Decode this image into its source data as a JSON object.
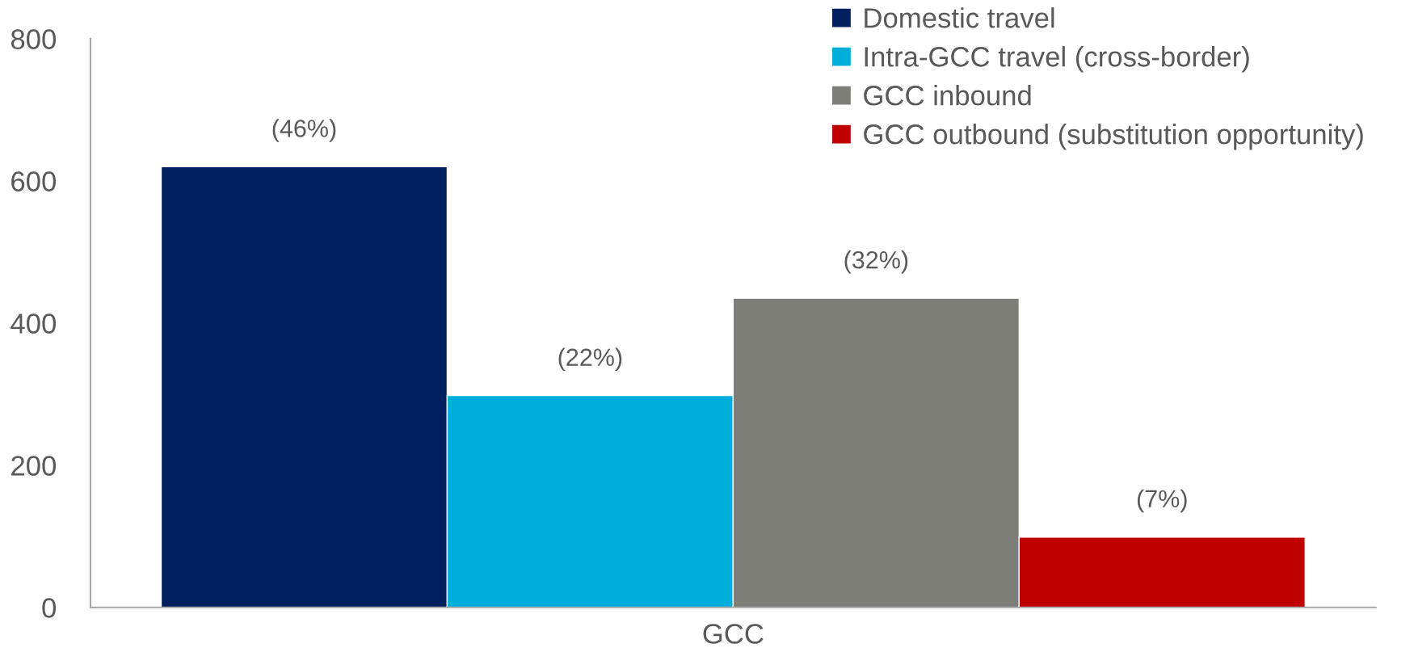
{
  "chart_data": {
    "type": "bar",
    "categories": [
      "GCC"
    ],
    "series": [
      {
        "name": "Domestic travel",
        "color": "#002060",
        "values": [
          620
        ]
      },
      {
        "name": "Intra-GCC travel (cross-border)",
        "color": "#00aedb",
        "values": [
          298
        ]
      },
      {
        "name": "GCC inbound",
        "color": "#7d7e78",
        "values": [
          435
        ]
      },
      {
        "name": "GCC outbound (substitution opportunity)",
        "color": "#c00000",
        "values": [
          99
        ]
      }
    ],
    "annotations": [
      "(46%)",
      "(22%)",
      "(32%)",
      "(7%)"
    ],
    "ylim": [
      0,
      800
    ],
    "yticks": [
      0,
      200,
      400,
      600,
      800
    ],
    "grid": false,
    "legend": "top right"
  }
}
